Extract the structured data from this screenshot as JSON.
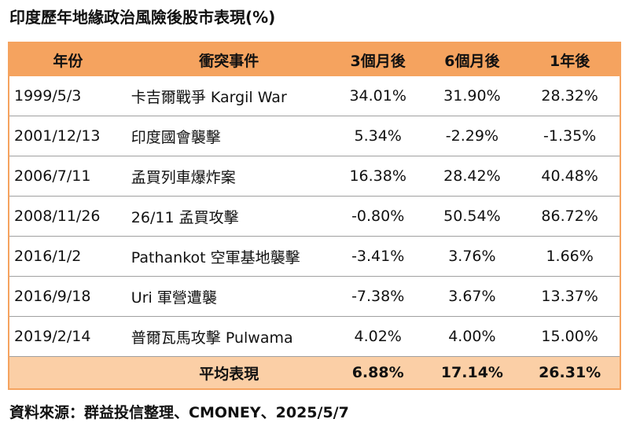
{
  "title": "印度歷年地緣政治風險後股市表現(%)",
  "table": {
    "header": [
      "年份",
      "衝突事件",
      "3個月後",
      "6個月後",
      "1年後"
    ],
    "rows": [
      [
        "1999/5/3",
        "卡吉爾戰爭 Kargil War",
        "34.01%",
        "31.90%",
        "28.32%"
      ],
      [
        "2001/12/13",
        "印度國會襲擊",
        "5.34%",
        "-2.29%",
        "-1.35%"
      ],
      [
        "2006/7/11",
        "孟買列車爆炸案",
        "16.38%",
        "28.42%",
        "40.48%"
      ],
      [
        "2008/11/26",
        "26/11 孟買攻擊",
        "-0.80%",
        "50.54%",
        "86.72%"
      ],
      [
        "2016/1/2",
        "Pathankot 空軍基地襲擊",
        "-3.41%",
        "3.76%",
        "1.66%"
      ],
      [
        "2016/9/18",
        "Uri 軍營遭襲",
        "-7.38%",
        "3.67%",
        "13.37%"
      ],
      [
        "2019/2/14",
        "普爾瓦馬攻擊 Pulwama",
        "4.02%",
        "4.00%",
        "15.00%"
      ]
    ],
    "average": {
      "label": "平均表現",
      "values": [
        "6.88%",
        "17.14%",
        "26.31%"
      ]
    }
  },
  "source": "資料來源：群益投信整理、CMONEY、2025/5/7"
}
